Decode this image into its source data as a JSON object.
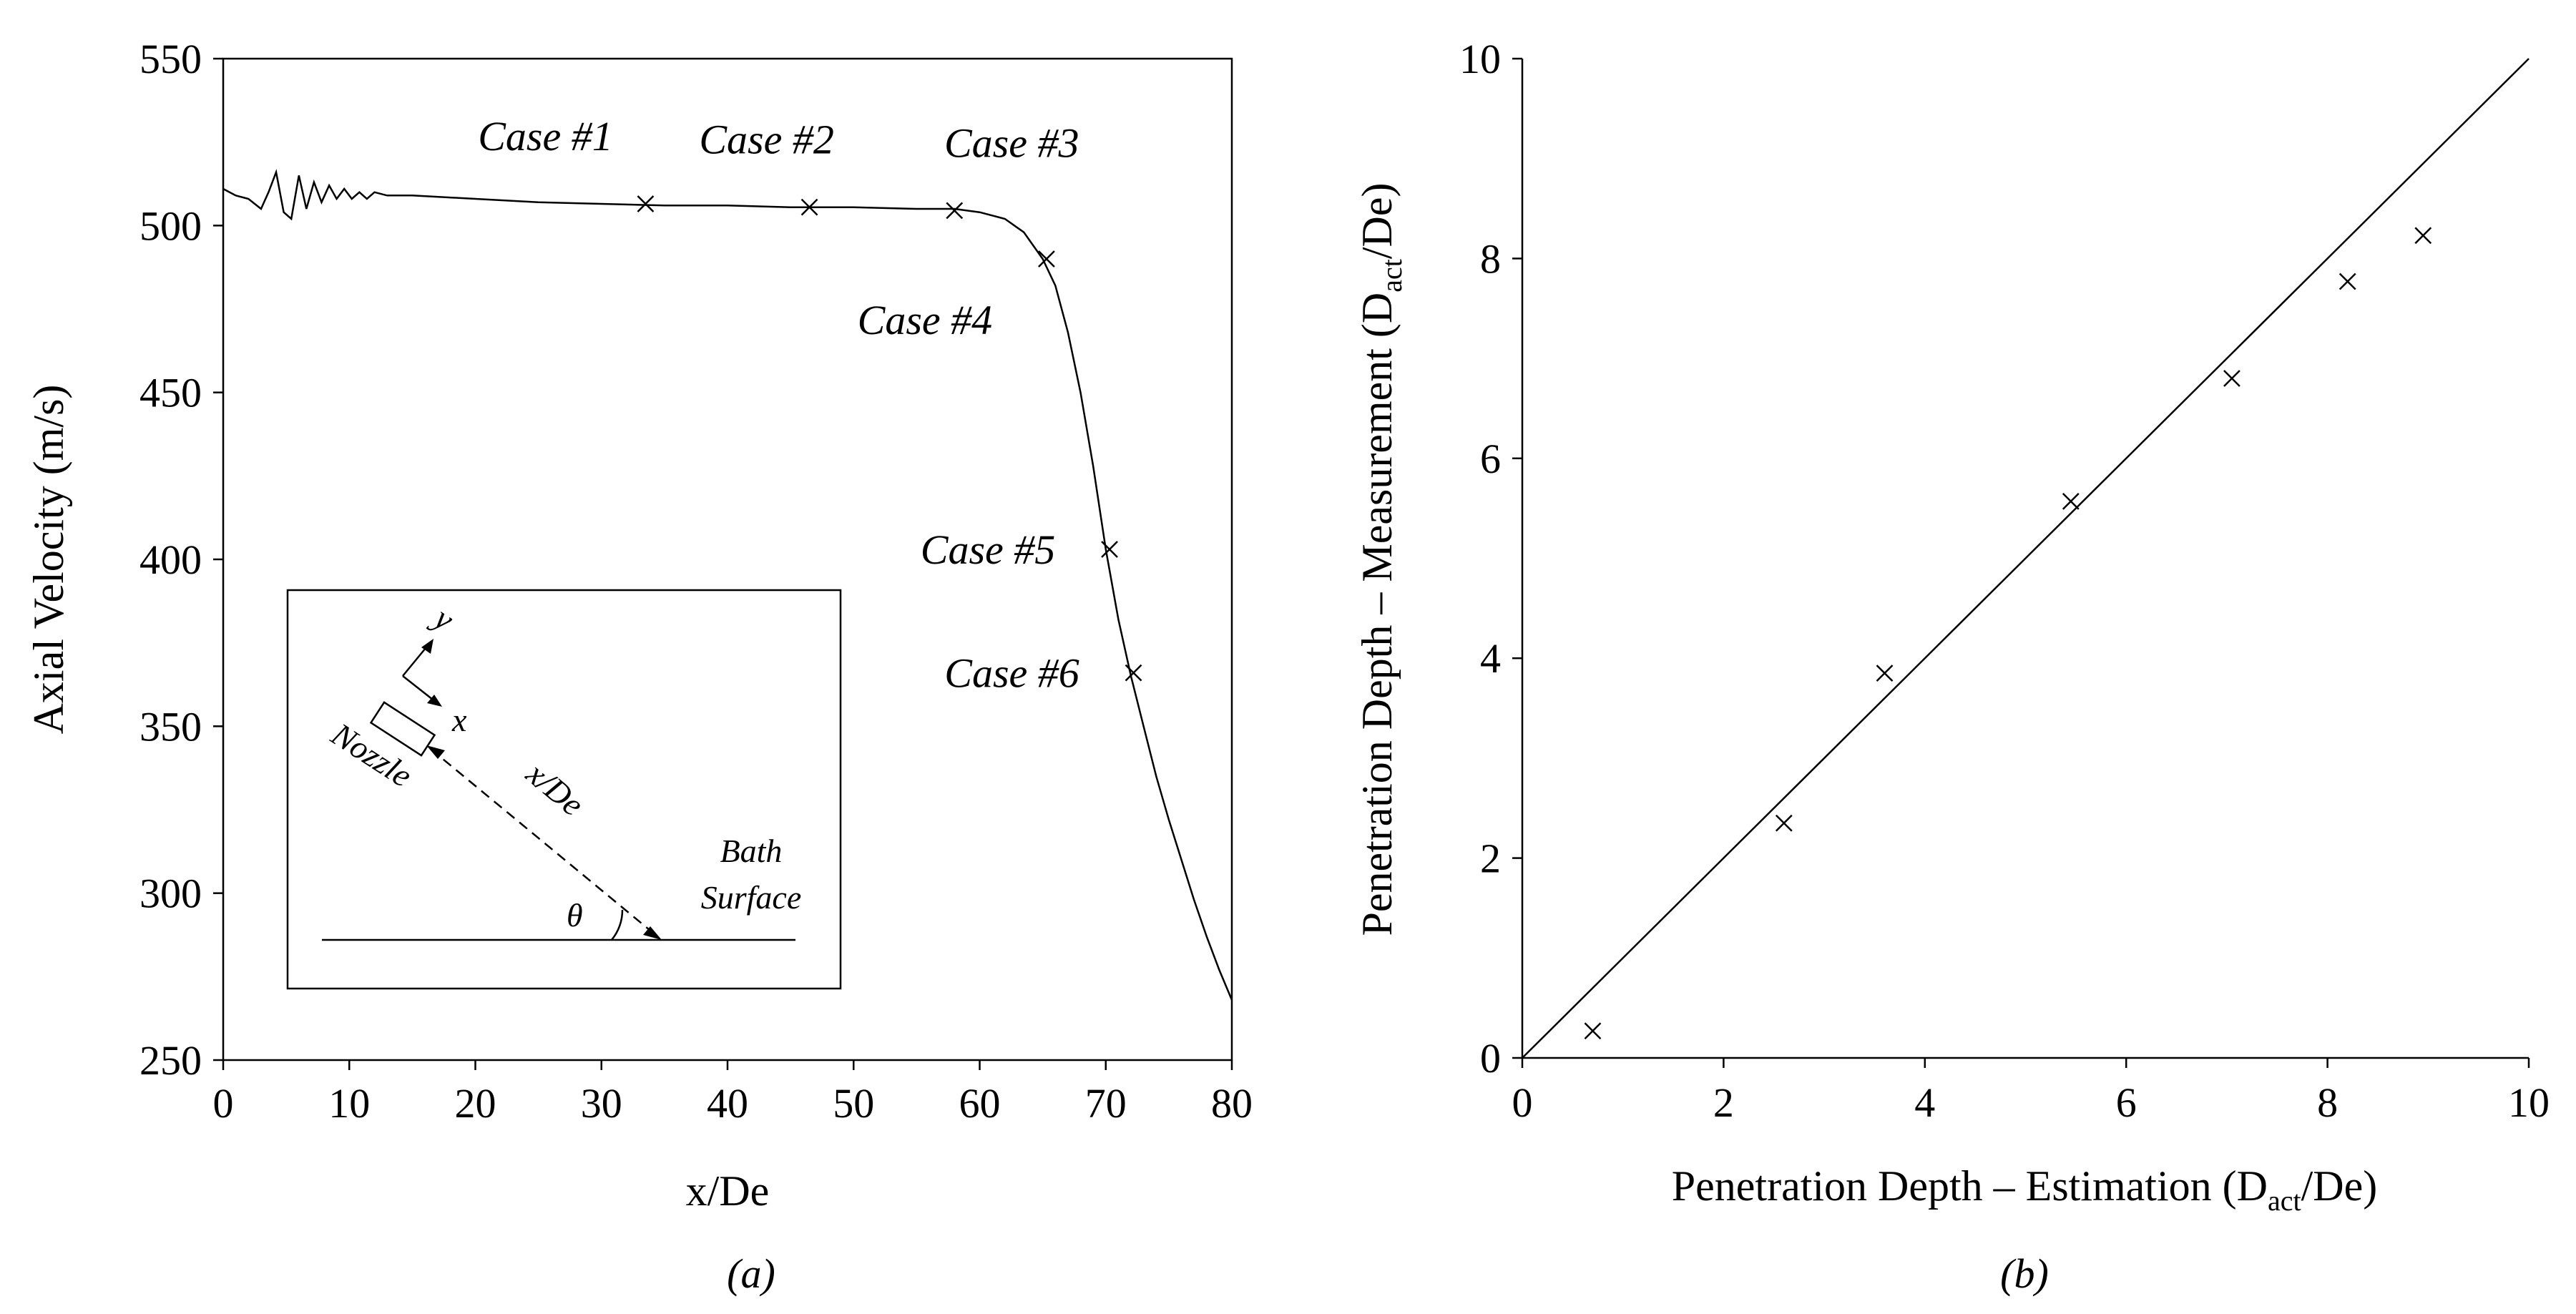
{
  "chart_data": [
    {
      "type": "line",
      "panel_label": "(a)",
      "xlabel": "x/De",
      "ylabel": "Axial Velocity (m/s)",
      "xlim": [
        0,
        80
      ],
      "ylim": [
        250,
        550
      ],
      "xticks": [
        "0",
        "10",
        "20",
        "30",
        "40",
        "50",
        "60",
        "70",
        "80"
      ],
      "yticks": [
        "250",
        "300",
        "350",
        "400",
        "450",
        "500",
        "550"
      ],
      "grid": false,
      "legend": "none",
      "series": [
        {
          "x": [
            0,
            1,
            2,
            3,
            3.6,
            4.2,
            4.8,
            5.4,
            6,
            6.6,
            7.2,
            7.8,
            8.4,
            9,
            9.6,
            10.2,
            10.8,
            11.4,
            12,
            13,
            15,
            20,
            25,
            30,
            35,
            40,
            45,
            50,
            55,
            58,
            60,
            62,
            63.5,
            65,
            66,
            67,
            68,
            69,
            70,
            71,
            72,
            73,
            74,
            75,
            76,
            77,
            78,
            79,
            80
          ],
          "values": [
            511,
            509,
            508,
            505,
            510,
            516,
            504,
            502,
            515,
            505,
            513,
            507,
            512,
            508,
            511,
            508,
            510,
            508,
            510,
            509,
            509,
            508,
            507,
            506.5,
            506,
            506,
            505.5,
            505.5,
            505,
            505,
            504,
            502,
            498,
            490,
            482,
            468,
            450,
            428,
            403,
            382,
            365,
            350,
            335,
            322,
            310,
            298,
            287,
            277,
            268
          ]
        }
      ],
      "points": [
        {
          "label": "Case #1",
          "x": 33.5,
          "y": 506.5
        },
        {
          "label": "Case #2",
          "x": 46.5,
          "y": 505.5
        },
        {
          "label": "Case #3",
          "x": 58,
          "y": 504.5
        },
        {
          "label": "Case #4",
          "x": 65.3,
          "y": 490
        },
        {
          "label": "Case #5",
          "x": 70.3,
          "y": 403
        },
        {
          "label": "Case #6",
          "x": 72.2,
          "y": 366
        }
      ],
      "inset": {
        "axis_y": "y",
        "axis_x": "x",
        "nozzle": "Nozzle",
        "distance": "x/De",
        "angle": "θ",
        "bath": "Bath",
        "surface": "Surface"
      }
    },
    {
      "type": "scatter",
      "panel_label": "(b)",
      "xlabel": {
        "pre": "Penetration Depth – Estimation (D",
        "sub": "act",
        "post": "/De)"
      },
      "ylabel": {
        "pre": "Penetration Depth – Measurement (D",
        "sub": "act",
        "post": "/De)"
      },
      "xlim": [
        0,
        10
      ],
      "ylim": [
        0,
        10
      ],
      "xticks": [
        "0",
        "2",
        "4",
        "6",
        "8",
        "10"
      ],
      "yticks": [
        "0",
        "2",
        "4",
        "6",
        "8",
        "10"
      ],
      "grid": false,
      "legend": "none",
      "reference_line": {
        "x": [
          0,
          10
        ],
        "y": [
          0,
          10
        ]
      },
      "series": [
        {
          "x": [
            0.7,
            2.6,
            3.6,
            5.45,
            7.05,
            8.2,
            8.95
          ],
          "values": [
            0.27,
            2.35,
            3.85,
            5.57,
            6.8,
            7.77,
            8.23
          ]
        }
      ]
    }
  ]
}
